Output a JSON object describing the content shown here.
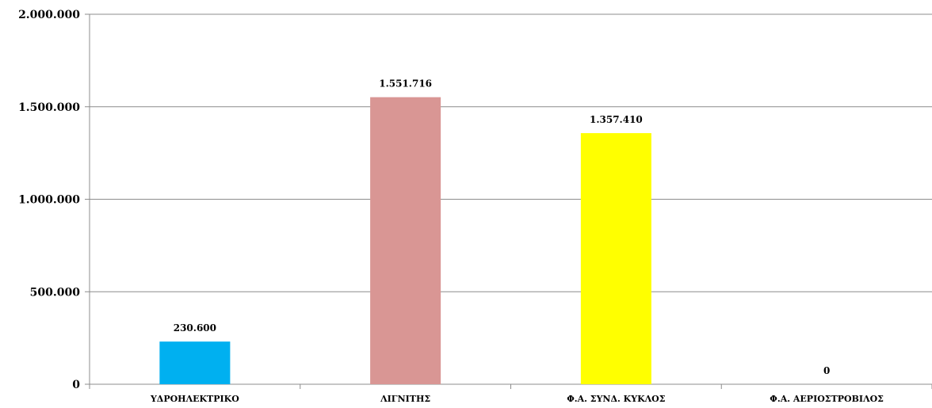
{
  "chart_data": {
    "type": "bar",
    "title": "",
    "xlabel": "",
    "ylabel": "",
    "categories": [
      "ΥΔΡΟΗΛΕΚΤΡΙΚΟ",
      "ΛΙΓΝΙΤΗΣ",
      "Φ.Α. ΣΥΝΔ. ΚΥΚΛΟΣ",
      "Φ.Α. ΑΕΡΙΟΣΤΡΟΒΙΛΟΣ"
    ],
    "values": [
      230600,
      1551716,
      1357410,
      0
    ],
    "value_labels": [
      "230.600",
      "1.551.716",
      "1.357.410",
      "0"
    ],
    "colors": [
      "#00b0f0",
      "#d99694",
      "#ffff00",
      "#ff0000"
    ],
    "ylim": [
      0,
      2000000
    ],
    "yticks": [
      0,
      500000,
      1000000,
      1500000,
      2000000
    ],
    "ytick_labels": [
      "0",
      "500.000",
      "1.000.000",
      "1.500.000",
      "2.000.000"
    ],
    "grid": true,
    "legend": "none"
  }
}
